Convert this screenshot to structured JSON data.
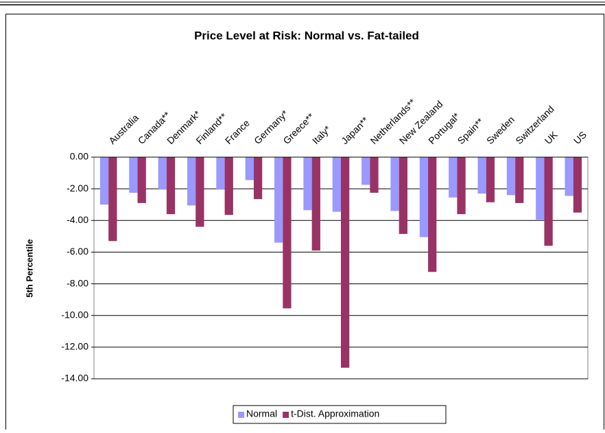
{
  "chart_data": {
    "type": "bar",
    "title": "Price Level at Risk:  Normal vs. Fat-tailed",
    "y_label": "5th Percentile",
    "categories": [
      "Australia",
      "Canada**",
      "Denmark*",
      "Finland**",
      "France",
      "Germany*",
      "Greece**",
      "Italy*",
      "Japan**",
      "Netherlands**",
      "New Zealand",
      "Portugal*",
      "Spain**",
      "Sweden",
      "Switzerland",
      "UK",
      "US"
    ],
    "series": [
      {
        "name": "Normal",
        "color": "#9999ff",
        "values": [
          -3.0,
          -2.25,
          -2.05,
          -3.05,
          -2.05,
          -1.45,
          -5.4,
          -3.35,
          -3.45,
          -1.75,
          -3.4,
          -5.05,
          -2.55,
          -2.3,
          -2.4,
          -3.95,
          -2.45
        ]
      },
      {
        "name": "t-Dist. Approximation",
        "color": "#993366",
        "values": [
          -5.3,
          -2.9,
          -3.6,
          -4.4,
          -3.65,
          -2.65,
          -9.55,
          -5.9,
          -13.3,
          -2.25,
          -4.85,
          -7.25,
          -3.6,
          -2.85,
          -2.9,
          -5.6,
          -3.5
        ]
      }
    ],
    "ylim": [
      -14,
      0
    ],
    "yticks": [
      {
        "value": 0,
        "label": "0.00"
      },
      {
        "value": -2,
        "label": "-2.00"
      },
      {
        "value": -4,
        "label": "-4.00"
      },
      {
        "value": -6,
        "label": "-6.00"
      },
      {
        "value": -8,
        "label": "-8.00"
      },
      {
        "value": -10,
        "label": "-10.00"
      },
      {
        "value": -12,
        "label": "-12.00"
      },
      {
        "value": -14,
        "label": "-14.00"
      }
    ],
    "grid": true
  }
}
